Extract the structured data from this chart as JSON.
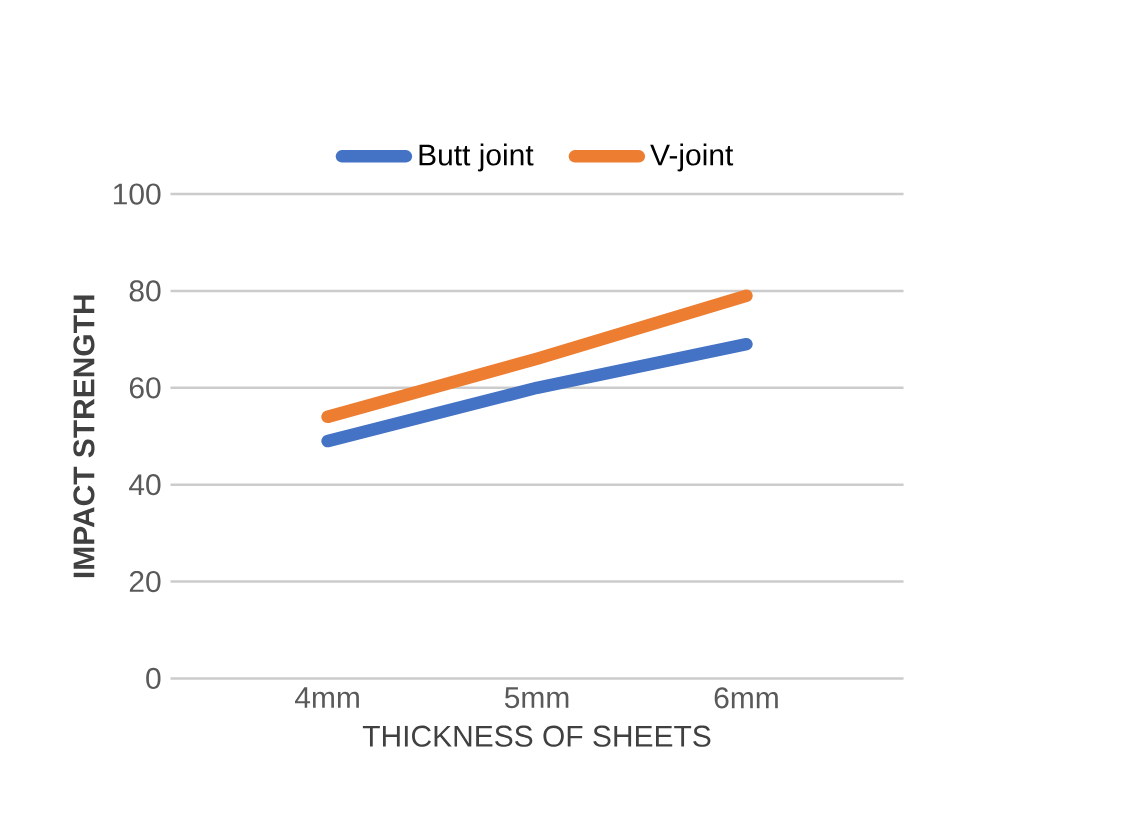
{
  "chart_data": {
    "type": "line",
    "xlabel": "THICKNESS OF SHEETS",
    "ylabel": "IMPACT STRENGTH",
    "categories": [
      "4mm",
      "5mm",
      "6mm"
    ],
    "series": [
      {
        "name": "Butt joint",
        "color": "#4472c4",
        "values": [
          49,
          60,
          69
        ]
      },
      {
        "name": "V-joint",
        "color": "#ed7d31",
        "values": [
          54,
          66,
          79
        ]
      }
    ],
    "ylim": [
      0,
      100
    ],
    "yticks": [
      0,
      20,
      40,
      60,
      80,
      100
    ],
    "grid": "y",
    "legend": "top",
    "marker": "none",
    "line_style": "solid"
  }
}
